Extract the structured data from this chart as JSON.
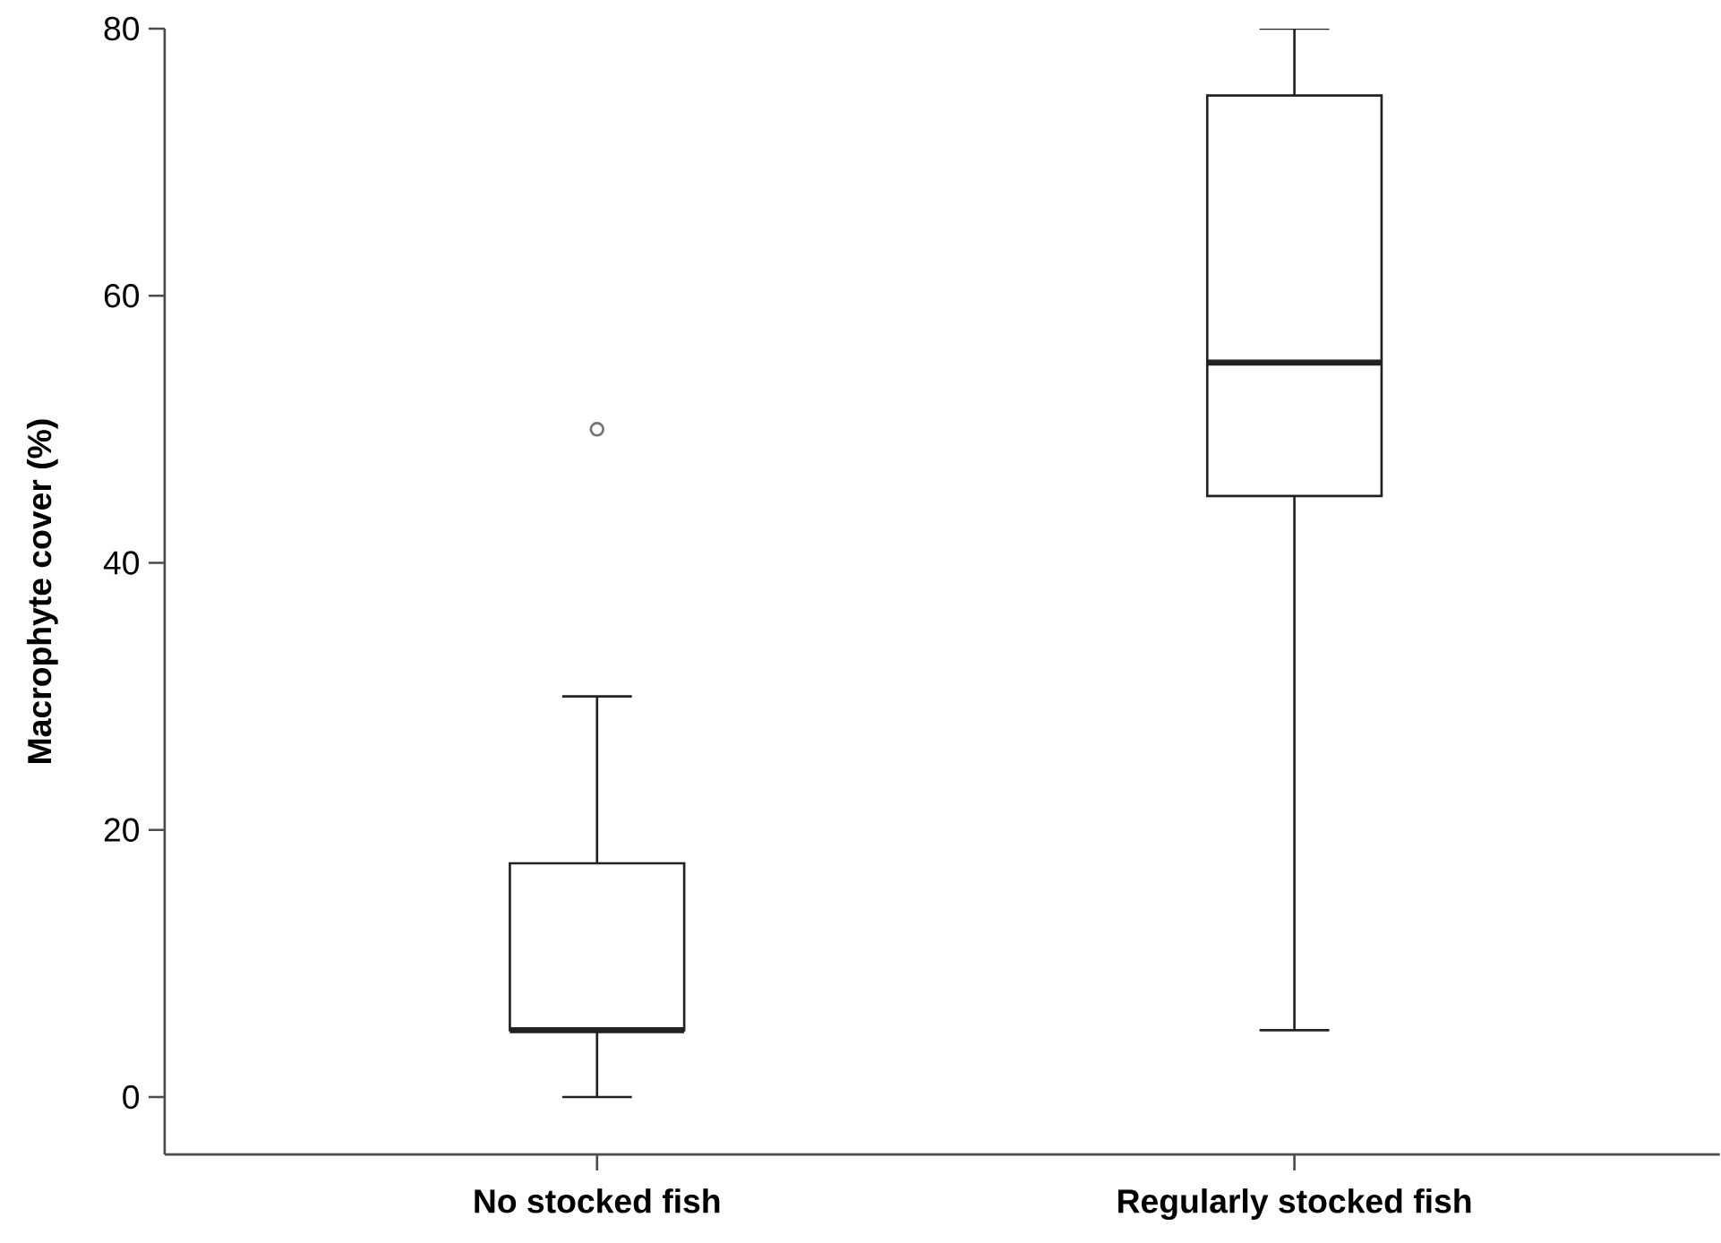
{
  "chart_data": {
    "type": "box",
    "ylabel": "Macrophyte cover (%)",
    "categories": [
      "No stocked fish",
      "Regularly stocked fish"
    ],
    "boxes": [
      {
        "low": 0,
        "q1": 5,
        "median": 5,
        "q3": 17.5,
        "high": 30,
        "outliers": [
          50
        ]
      },
      {
        "low": 5,
        "q1": 45,
        "median": 55,
        "q3": 75,
        "high": 80
      }
    ],
    "color": "#222222",
    "ylim": [
      -4.3,
      80
    ],
    "yticks": [
      0,
      20,
      40,
      60,
      80
    ],
    "grid": false
  }
}
